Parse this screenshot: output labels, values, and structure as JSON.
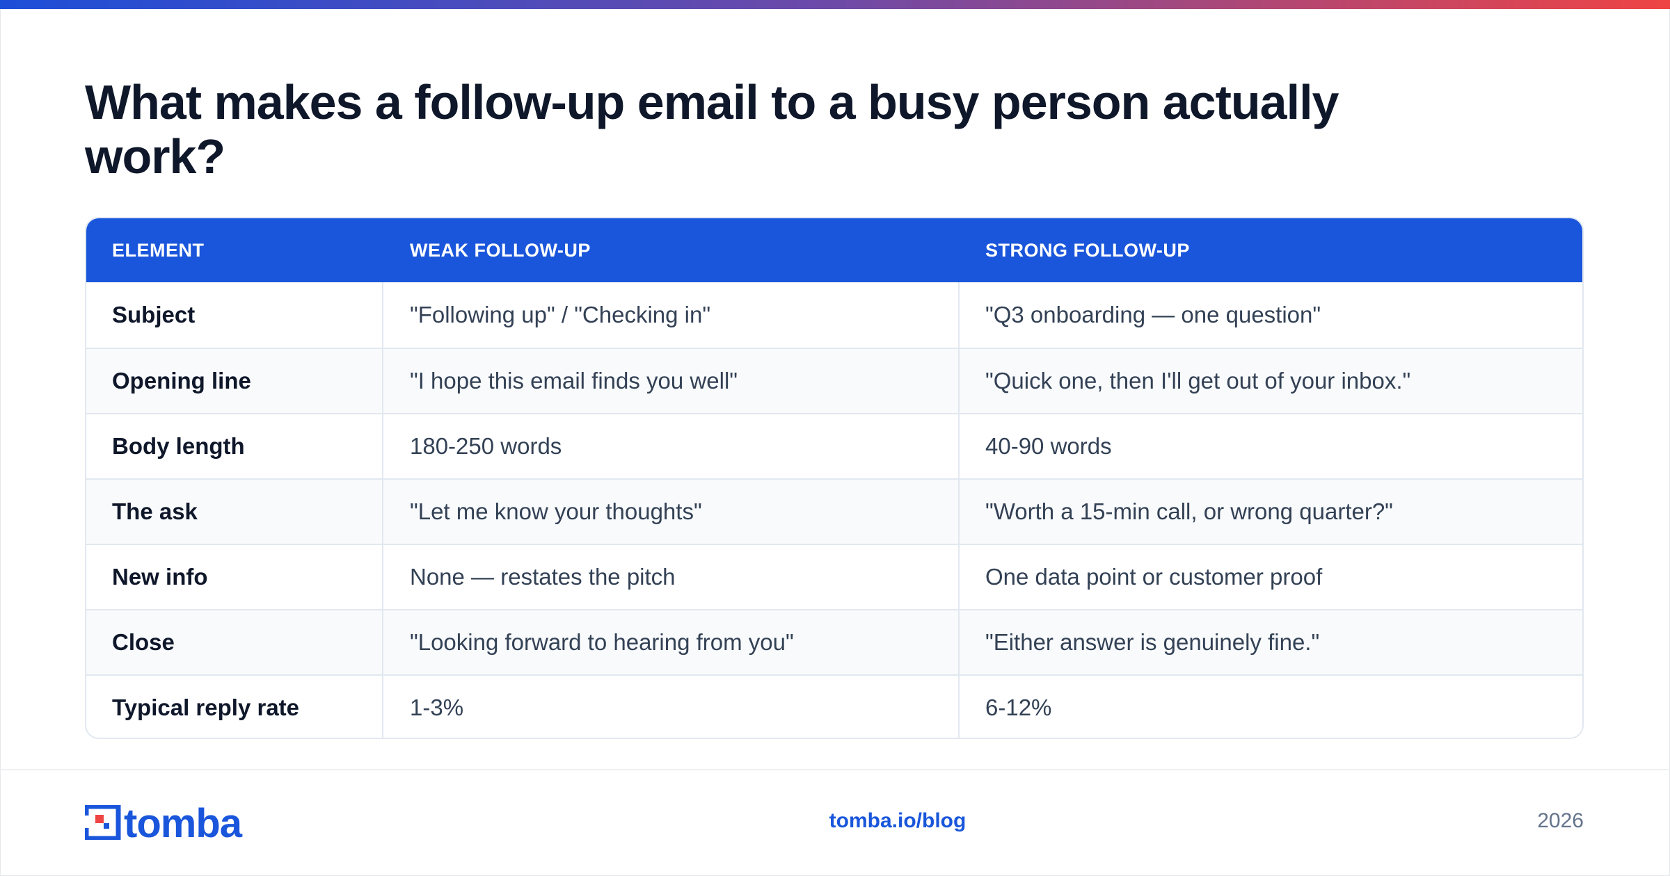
{
  "title": "What makes a follow-up email to a busy person actually work?",
  "table": {
    "headers": [
      "ELEMENT",
      "WEAK FOLLOW-UP",
      "STRONG FOLLOW-UP"
    ],
    "rows": [
      {
        "element": "Subject",
        "weak": "\"Following up\" / \"Checking in\"",
        "strong": "\"Q3 onboarding — one question\""
      },
      {
        "element": "Opening line",
        "weak": "\"I hope this email finds you well\"",
        "strong": "\"Quick one, then I'll get out of your inbox.\""
      },
      {
        "element": "Body length",
        "weak": "180-250 words",
        "strong": "40-90 words"
      },
      {
        "element": "The ask",
        "weak": "\"Let me know your thoughts\"",
        "strong": "\"Worth a 15-min call, or wrong quarter?\""
      },
      {
        "element": "New info",
        "weak": "None — restates the pitch",
        "strong": "One data point or customer proof"
      },
      {
        "element": "Close",
        "weak": "\"Looking forward to hearing from you\"",
        "strong": "\"Either answer is genuinely fine.\""
      },
      {
        "element": "Typical reply rate",
        "weak": "1-3%",
        "strong": "6-12%"
      }
    ]
  },
  "footer": {
    "logo_text": "tomba",
    "link": "tomba.io/blog",
    "year": "2026"
  },
  "colors": {
    "accent": "#1a56db",
    "gradient_start": "#1d4ed8",
    "gradient_end": "#ef4444"
  },
  "icons": {
    "logo": "tomba-logo-icon"
  }
}
